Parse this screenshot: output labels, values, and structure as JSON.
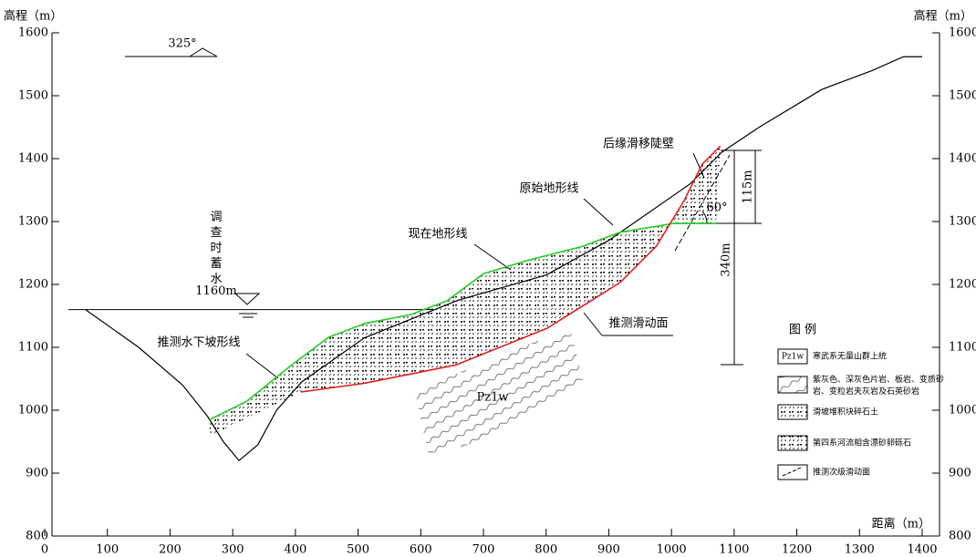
{
  "chart_data": {
    "type": "line",
    "y_label": "高程（m）",
    "y2_label": "高程（m）",
    "x_label": "距离（m）",
    "xlim": [
      0,
      1400
    ],
    "xticks": [
      0,
      100,
      200,
      300,
      400,
      500,
      600,
      700,
      800,
      900,
      1000,
      1100,
      1200,
      1300,
      1400
    ],
    "ylim": [
      800,
      1600
    ],
    "yticks": [
      800,
      900,
      1000,
      1100,
      1200,
      1300,
      1400,
      1500,
      1600
    ],
    "y2lim": [
      800,
      1600
    ],
    "y2ticks": [
      800,
      900,
      1000,
      1100,
      1200,
      1300,
      1400,
      1500,
      1600
    ],
    "series": [
      {
        "name": "原始地形线",
        "color": "#000000",
        "x": [
          65,
          150,
          220,
          260,
          285,
          310,
          340,
          370,
          410,
          510,
          660,
          800,
          900,
          1030,
          1080,
          1140,
          1240,
          1320,
          1370,
          1400
        ],
        "values": [
          1160,
          1100,
          1040,
          990,
          950,
          920,
          945,
          1000,
          1045,
          1115,
          1175,
          1215,
          1270,
          1360,
          1410,
          1450,
          1510,
          1540,
          1562,
          1562
        ]
      },
      {
        "name": "现在地形线",
        "color": "#22cc22",
        "x": [
          263,
          322,
          394,
          453,
          511,
          584,
          642,
          700,
          773,
          860,
          918,
          1004,
          1071
        ],
        "values": [
          985,
          1014,
          1072,
          1116,
          1138,
          1152,
          1174,
          1217,
          1239,
          1261,
          1283,
          1297,
          1297
        ]
      },
      {
        "name": "推测滑动面",
        "color": "#dd2222",
        "x": [
          409,
          511,
          656,
          801,
          918,
          976,
          1020,
          1049,
          1078
        ],
        "values": [
          1029,
          1043,
          1072,
          1130,
          1203,
          1261,
          1333,
          1391,
          1420
        ]
      }
    ],
    "water_level": {
      "value": 1160,
      "label": "1160m",
      "text": "调查时蓄水"
    },
    "annotations": {
      "azimuth": "325°",
      "scarp": "后缘滑移陡壁",
      "original": "原始地形线",
      "current": "现在地形线",
      "underwater": "推测水下坡形线",
      "slip": "推测滑动面",
      "rock": "Pz1w",
      "angle": "60°",
      "h1": "115m",
      "h2": "340m"
    },
    "legend": {
      "title": "图    例",
      "items": [
        {
          "code": "Pz1w",
          "text": "寒武系无量山群上统"
        },
        {
          "text": "紫灰色、深灰色片岩、板岩、变质砂岩、变粒岩夹灰岩及石英砂岩"
        },
        {
          "text": "滑坡堆积块碎石土"
        },
        {
          "text": "第四系河流相含漂砂卵砾石"
        },
        {
          "text": "推测次级滑动面"
        }
      ]
    }
  }
}
